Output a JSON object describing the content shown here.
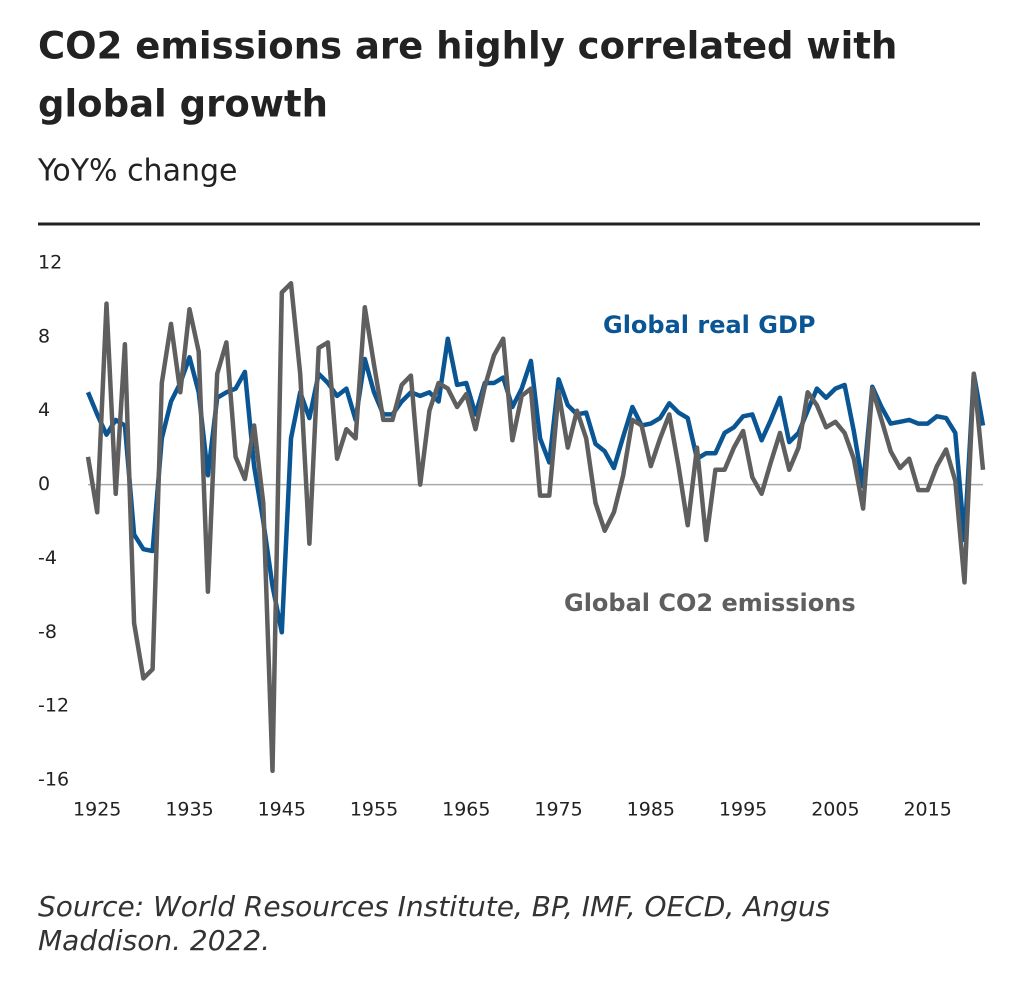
{
  "chart_data": {
    "type": "line",
    "title": [
      "CO2 emissions are highly correlated with",
      "global growth"
    ],
    "subtitle": "YoY% change",
    "source": [
      "Source: World Resources Institute, BP, IMF, OECD, Angus",
      "Maddison. 2022."
    ],
    "x": [
      1924,
      1925,
      1926,
      1927,
      1928,
      1929,
      1930,
      1931,
      1932,
      1933,
      1934,
      1935,
      1936,
      1937,
      1938,
      1939,
      1940,
      1941,
      1942,
      1943,
      1944,
      1945,
      1946,
      1947,
      1948,
      1949,
      1950,
      1951,
      1952,
      1953,
      1954,
      1955,
      1956,
      1957,
      1958,
      1959,
      1960,
      1961,
      1962,
      1963,
      1964,
      1965,
      1966,
      1967,
      1968,
      1969,
      1970,
      1971,
      1972,
      1973,
      1974,
      1975,
      1976,
      1977,
      1978,
      1979,
      1980,
      1981,
      1982,
      1983,
      1984,
      1985,
      1986,
      1987,
      1988,
      1989,
      1990,
      1991,
      1992,
      1993,
      1994,
      1995,
      1996,
      1997,
      1998,
      1999,
      2000,
      2001,
      2002,
      2003,
      2004,
      2005,
      2006,
      2007,
      2008,
      2009,
      2010,
      2011,
      2012,
      2013,
      2014,
      2015,
      2016,
      2017,
      2018,
      2019,
      2020,
      2021
    ],
    "series": [
      {
        "name": "Global real GDP",
        "color": "#0a5694",
        "values": [
          5,
          3.8,
          2.7,
          3.5,
          3.2,
          -2.7,
          -3.5,
          -3.6,
          2.5,
          4.5,
          5.5,
          6.9,
          5,
          0.5,
          4.7,
          5,
          5.2,
          6.1,
          1,
          -2,
          -5.5,
          -8,
          2.5,
          5,
          3.6,
          6,
          5.5,
          4.8,
          5.2,
          3.5,
          6.8,
          5,
          3.8,
          3.8,
          4.5,
          5,
          4.8,
          5,
          4.5,
          7.9,
          5.4,
          5.5,
          3.8,
          5.5,
          5.5,
          5.8,
          4.2,
          5.2,
          6.7,
          2.5,
          1.2,
          5.7,
          4.3,
          3.8,
          3.9,
          2.2,
          1.8,
          0.9,
          2.6,
          4.2,
          3.2,
          3.3,
          3.6,
          4.4,
          3.9,
          3.6,
          1.4,
          1.7,
          1.7,
          2.8,
          3.1,
          3.7,
          3.8,
          2.4,
          3.5,
          4.7,
          2.3,
          2.8,
          4,
          5.2,
          4.7,
          5.2,
          5.4,
          2.9,
          -0.1,
          5.3,
          4.2,
          3.3,
          3.4,
          3.5,
          3.3,
          3.3,
          3.7,
          3.6,
          2.8,
          -3,
          6,
          3.2
        ]
      },
      {
        "name": "Global CO2 emissions",
        "color": "#5f5f5f",
        "values": [
          1.5,
          -1.5,
          9.8,
          -0.5,
          7.6,
          -7.5,
          -10.5,
          -10,
          5.5,
          8.7,
          5,
          9.5,
          7.2,
          -5.8,
          6,
          7.7,
          1.5,
          0.3,
          3.2,
          -1,
          -15.5,
          10.4,
          10.9,
          6,
          -3.2,
          7.4,
          7.7,
          1.4,
          3,
          2.5,
          9.6,
          6.5,
          3.5,
          3.5,
          5.4,
          5.9,
          0,
          4,
          5.5,
          5.2,
          4.2,
          4.9,
          3,
          5.3,
          7,
          7.9,
          2.4,
          4.8,
          5.2,
          -0.6,
          -0.6,
          5,
          2,
          4,
          2.5,
          -1,
          -2.5,
          -1.5,
          0.5,
          3.5,
          3.2,
          1,
          2.5,
          3.8,
          1,
          -2.2,
          2,
          -3,
          0.8,
          0.8,
          2,
          2.9,
          0.4,
          -0.5,
          1.2,
          2.8,
          0.8,
          2,
          5,
          4.3,
          3.1,
          3.4,
          2.8,
          1.4,
          -1.3,
          5.2,
          3.5,
          1.8,
          0.9,
          1.4,
          -0.3,
          -0.3,
          1,
          1.9,
          0.2,
          -5.3,
          6,
          0.8
        ]
      }
    ],
    "xlim": [
      1924,
      2021
    ],
    "xticks": [
      1925,
      1935,
      1945,
      1955,
      1965,
      1975,
      1985,
      1995,
      2005,
      2015
    ],
    "ylim": [
      -16,
      12
    ],
    "yticks": [
      -16,
      -12,
      -8,
      -4,
      0,
      4,
      8,
      12
    ]
  }
}
